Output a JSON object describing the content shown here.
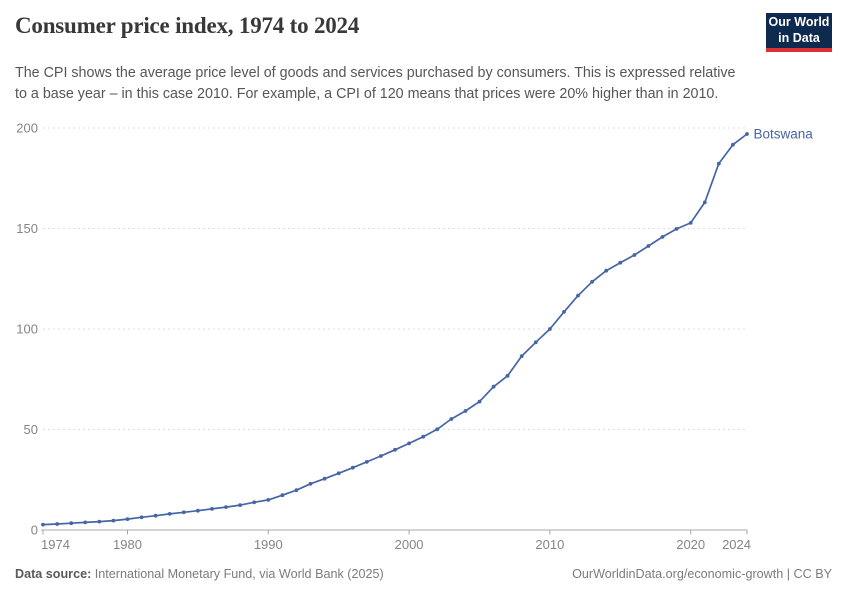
{
  "header": {
    "title": "Consumer price index, 1974 to 2024",
    "subtitle": "The CPI shows the average price level of goods and services purchased by consumers. This is expressed relative to a base year – in this case 2010. For example, a CPI of 120 means that prices were 20% higher than in 2010."
  },
  "logo": {
    "line1": "Our World",
    "line2": "in Data",
    "bg_color": "#0e2a4e",
    "bar_color": "#dc2f36"
  },
  "chart_data": {
    "type": "line",
    "title": "Consumer price index, 1974 to 2024",
    "xlabel": "",
    "ylabel": "",
    "xlim": [
      1974,
      2024
    ],
    "ylim": [
      0,
      200
    ],
    "x_ticks": [
      1974,
      1980,
      1990,
      2000,
      2010,
      2020,
      2024
    ],
    "y_ticks": [
      0,
      50,
      100,
      150,
      200
    ],
    "grid": "horizontal-dashed",
    "legend_position": "end-of-line-label",
    "x": [
      1974,
      1975,
      1976,
      1977,
      1978,
      1979,
      1980,
      1981,
      1982,
      1983,
      1984,
      1985,
      1986,
      1987,
      1988,
      1989,
      1990,
      1991,
      1992,
      1993,
      1994,
      1995,
      1996,
      1997,
      1998,
      1999,
      2000,
      2001,
      2002,
      2003,
      2004,
      2005,
      2006,
      2007,
      2008,
      2009,
      2010,
      2011,
      2012,
      2013,
      2014,
      2015,
      2016,
      2017,
      2018,
      2019,
      2020,
      2021,
      2022,
      2023,
      2024
    ],
    "series": [
      {
        "name": "Botswana",
        "color": "#4665a5",
        "values": [
          2.7,
          3.0,
          3.4,
          3.8,
          4.2,
          4.7,
          5.4,
          6.3,
          7.1,
          8.0,
          8.8,
          9.6,
          10.5,
          11.4,
          12.4,
          13.8,
          15.0,
          17.3,
          19.8,
          23.0,
          25.5,
          28.2,
          31.0,
          33.9,
          36.8,
          39.9,
          43.1,
          46.4,
          50.1,
          55.2,
          59.2,
          63.9,
          71.3,
          76.7,
          86.5,
          93.4,
          100.0,
          108.5,
          116.6,
          123.5,
          129.0,
          133.0,
          136.8,
          141.3,
          145.8,
          149.8,
          152.8,
          163.0,
          182.3,
          191.7,
          197.0
        ]
      }
    ],
    "style": {
      "gridline_color": "#dedede",
      "axis_color": "#a8a8a8",
      "tick_label_color": "#858585"
    }
  },
  "footer": {
    "data_source_label": "Data source:",
    "data_source_value": " International Monetary Fund, via World Bank (2025)",
    "credit": "OurWorldinData.org/economic-growth | CC BY"
  }
}
